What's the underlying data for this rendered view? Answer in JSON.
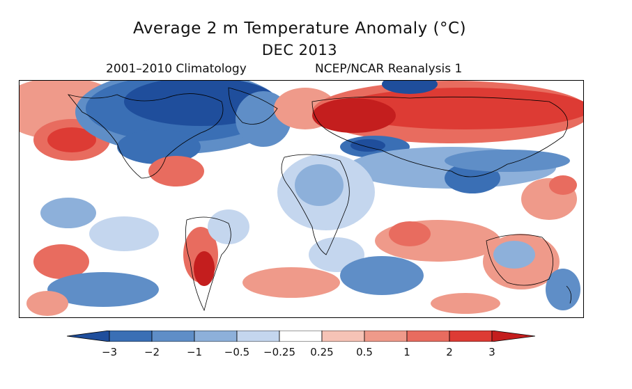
{
  "header": {
    "title": "Average 2 m Temperature Anomaly (°C)",
    "subtitle": "DEC 2013",
    "climatology": "2001–2010 Climatology",
    "dataset": "NCEP/NCAR Reanalysis 1"
  },
  "colorbar": {
    "ticks": [
      "−3",
      "−2",
      "−1",
      "−0.5",
      "−0.25",
      "0.25",
      "0.5",
      "1",
      "2",
      "3"
    ],
    "colors": [
      "#1f4e9c",
      "#3a6fb5",
      "#5f8ec7",
      "#8db0da",
      "#c4d6ee",
      "#ffffff",
      "#f6c3b6",
      "#ef9a8a",
      "#e86c5f",
      "#dd3b34",
      "#c41e1e"
    ]
  }
}
